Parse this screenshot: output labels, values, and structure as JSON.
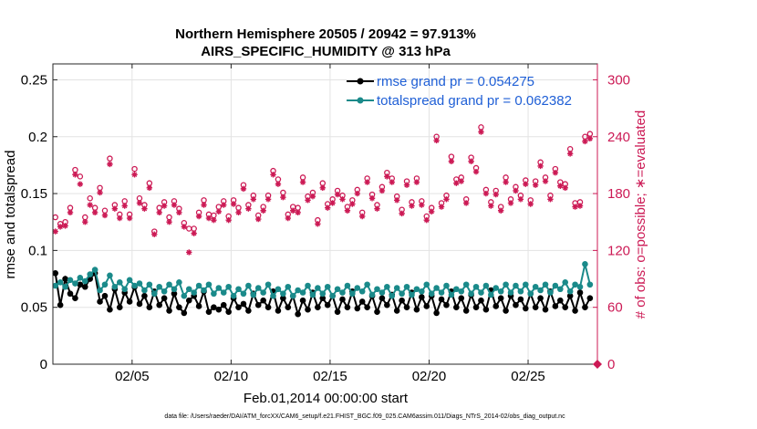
{
  "chart_data": {
    "type": "line",
    "title": "Northern Hemisphere 20505 / 20942 = 97.913%",
    "subtitle": "AIRS_SPECIFIC_HUMIDITY @ 313 hPa",
    "xlabel": "Feb.01,2014 00:00:00 start",
    "ylabel_left": "rmse and totalspread",
    "ylabel_right": "# of obs: o=possible; ∗=evaluated",
    "footer": "data file: /Users/raeder/DAI/ATM_forcXX/CAM6_setup/f.e21.FHIST_BGC.f09_025.CAM6assim.011/Diags_NTrS_2014-02/obs_diag_output.nc",
    "xlim": [
      1,
      28.5
    ],
    "ylim_left": [
      0,
      0.264
    ],
    "ylim_right": [
      0,
      316.8
    ],
    "x_ticks": [
      5,
      10,
      15,
      20,
      25
    ],
    "x_tick_labels": [
      "02/05",
      "02/10",
      "02/15",
      "02/20",
      "02/25"
    ],
    "y_left_ticks": [
      0,
      0.05,
      0.1,
      0.15,
      0.2,
      0.25
    ],
    "y_left_tick_labels": [
      "0",
      "0.05",
      "0.1",
      "0.15",
      "0.2",
      "0.25"
    ],
    "y_right_ticks": [
      0,
      60,
      120,
      180,
      240,
      300
    ],
    "y_right_tick_labels": [
      "0",
      "60",
      "120",
      "180",
      "240",
      "300"
    ],
    "grid": true,
    "legend_position": "top-right",
    "x_start": 1.125,
    "x_step": 0.25,
    "series": [
      {
        "name": "rmse grand pr = 0.054275",
        "axis": "left",
        "color": "#000000",
        "values": [
          0.08,
          0.052,
          0.075,
          0.062,
          0.058,
          0.07,
          0.068,
          0.075,
          0.08,
          0.055,
          0.06,
          0.048,
          0.066,
          0.05,
          0.063,
          0.055,
          0.068,
          0.053,
          0.06,
          0.05,
          0.064,
          0.052,
          0.058,
          0.047,
          0.062,
          0.05,
          0.045,
          0.056,
          0.06,
          0.051,
          0.064,
          0.046,
          0.05,
          0.048,
          0.052,
          0.046,
          0.058,
          0.05,
          0.053,
          0.047,
          0.062,
          0.052,
          0.056,
          0.05,
          0.064,
          0.047,
          0.058,
          0.05,
          0.06,
          0.044,
          0.056,
          0.048,
          0.063,
          0.05,
          0.058,
          0.052,
          0.06,
          0.046,
          0.057,
          0.05,
          0.064,
          0.049,
          0.055,
          0.05,
          0.06,
          0.046,
          0.058,
          0.052,
          0.061,
          0.047,
          0.056,
          0.05,
          0.063,
          0.048,
          0.059,
          0.051,
          0.06,
          0.045,
          0.057,
          0.052,
          0.064,
          0.05,
          0.058,
          0.047,
          0.061,
          0.05,
          0.056,
          0.048,
          0.065,
          0.051,
          0.058,
          0.047,
          0.06,
          0.052,
          0.057,
          0.049,
          0.062,
          0.05,
          0.058,
          0.048,
          0.064,
          0.051,
          0.056,
          0.05,
          0.06,
          0.047,
          0.063,
          0.05,
          0.058
        ]
      },
      {
        "name": "totalspread grand pr = 0.062382",
        "axis": "left",
        "color": "#1a8a8a",
        "values": [
          0.069,
          0.072,
          0.068,
          0.074,
          0.071,
          0.076,
          0.073,
          0.079,
          0.083,
          0.065,
          0.07,
          0.078,
          0.068,
          0.072,
          0.066,
          0.074,
          0.069,
          0.071,
          0.065,
          0.07,
          0.062,
          0.068,
          0.064,
          0.07,
          0.066,
          0.072,
          0.06,
          0.066,
          0.063,
          0.069,
          0.065,
          0.07,
          0.062,
          0.067,
          0.063,
          0.068,
          0.06,
          0.066,
          0.062,
          0.069,
          0.061,
          0.067,
          0.063,
          0.07,
          0.06,
          0.066,
          0.062,
          0.068,
          0.06,
          0.065,
          0.063,
          0.069,
          0.061,
          0.067,
          0.062,
          0.068,
          0.06,
          0.066,
          0.063,
          0.069,
          0.062,
          0.067,
          0.064,
          0.07,
          0.061,
          0.066,
          0.063,
          0.068,
          0.06,
          0.067,
          0.062,
          0.068,
          0.061,
          0.066,
          0.064,
          0.07,
          0.062,
          0.067,
          0.063,
          0.069,
          0.061,
          0.066,
          0.064,
          0.07,
          0.062,
          0.068,
          0.063,
          0.069,
          0.061,
          0.067,
          0.064,
          0.07,
          0.063,
          0.069,
          0.064,
          0.07,
          0.062,
          0.068,
          0.065,
          0.07,
          0.063,
          0.069,
          0.066,
          0.072,
          0.064,
          0.07,
          0.068,
          0.088,
          0.07
        ]
      }
    ],
    "obs_possible": {
      "name": "o=possible",
      "axis": "right",
      "color": "#cc1a55",
      "values": [
        155,
        148,
        150,
        165,
        205,
        198,
        155,
        175,
        165,
        186,
        162,
        217,
        168,
        158,
        172,
        158,
        206,
        175,
        168,
        191,
        140,
        165,
        171,
        155,
        172,
        164,
        149,
        143,
        143,
        160,
        173,
        158,
        157,
        166,
        172,
        156,
        173,
        165,
        189,
        168,
        178,
        157,
        166,
        178,
        204,
        195,
        181,
        158,
        166,
        165,
        197,
        177,
        181,
        152,
        191,
        169,
        174,
        183,
        178,
        166,
        173,
        184,
        160,
        196,
        179,
        168,
        187,
        202,
        196,
        177,
        163,
        193,
        171,
        196,
        172,
        156,
        165,
        240,
        170,
        178,
        219,
        195,
        197,
        174,
        218,
        207,
        250,
        184,
        171,
        183,
        166,
        197,
        174,
        187,
        178,
        194,
        173,
        193,
        213,
        197,
        178,
        206,
        192,
        190,
        227,
        170,
        171,
        240,
        243
      ]
    },
    "obs_evaluated": {
      "name": "∗=evaluated",
      "axis": "right",
      "color": "#cc1a55",
      "values": [
        140,
        145,
        146,
        160,
        200,
        190,
        150,
        168,
        160,
        181,
        157,
        211,
        164,
        154,
        167,
        154,
        200,
        170,
        164,
        186,
        137,
        160,
        167,
        150,
        168,
        160,
        145,
        118,
        138,
        156,
        168,
        154,
        152,
        161,
        168,
        152,
        169,
        160,
        185,
        164,
        174,
        153,
        162,
        174,
        200,
        190,
        176,
        154,
        162,
        160,
        192,
        173,
        177,
        148,
        186,
        165,
        170,
        179,
        174,
        162,
        169,
        180,
        156,
        192,
        175,
        164,
        183,
        198,
        192,
        173,
        159,
        189,
        167,
        192,
        168,
        152,
        161,
        236,
        166,
        174,
        214,
        191,
        193,
        170,
        214,
        203,
        245,
        180,
        167,
        179,
        162,
        192,
        170,
        183,
        174,
        190,
        169,
        189,
        209,
        193,
        174,
        202,
        188,
        186,
        222,
        166,
        167,
        235,
        238
      ]
    },
    "annotations": [
      "0 (end-point marker on right axis)"
    ]
  }
}
